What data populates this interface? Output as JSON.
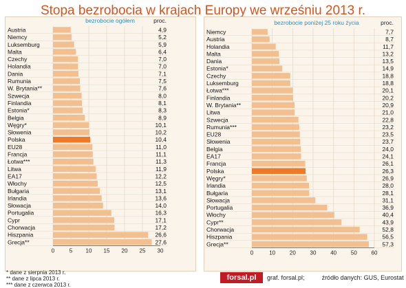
{
  "title": "Stopa bezrobocia w krajach Europy we wrześniu 2013 r.",
  "colors": {
    "bar": "#f2bf91",
    "highlight": "#ec7a2a",
    "panel_bg": "#fbf4ea",
    "title": "#d6541c",
    "logo_bg": "#c11b24"
  },
  "chart_data": [
    {
      "type": "bar",
      "orientation": "horizontal",
      "subtitle": "bezrobocie ogółem",
      "value_header": "proc.",
      "xlim": [
        0,
        30
      ],
      "xticks": [
        "0",
        "5",
        "10",
        "15",
        "20",
        "25",
        "30"
      ],
      "highlight": "Polska",
      "categories": [
        "Austria",
        "Niemcy",
        "Luksemburg",
        "Malta",
        "Czechy",
        "Holandia",
        "Dania",
        "Rumunia",
        "W. Brytania**",
        "Szwecja",
        "Finlandia",
        "Estonia*",
        "Belgia",
        "Węgry*",
        "Słowenia",
        "Polska",
        "EU28",
        "Francja",
        "Łotwa***",
        "Litwa",
        "EA17",
        "Włochy",
        "Bułgaria",
        "Irlandia",
        "Słowacja",
        "Portugalia",
        "Cypr",
        "Chorwacja",
        "Hiszpania",
        "Grecja**"
      ],
      "values": [
        4.9,
        5.2,
        5.9,
        6.4,
        7.0,
        7.0,
        7.1,
        7.5,
        7.6,
        8.0,
        8.1,
        8.3,
        8.9,
        10.1,
        10.2,
        10.4,
        11.0,
        11.1,
        11.3,
        11.9,
        12.2,
        12.5,
        13.1,
        13.6,
        14.0,
        16.3,
        17.1,
        17.2,
        26.6,
        27.6
      ],
      "labels": [
        "4,9",
        "5,2",
        "5,9",
        "6,4",
        "7,0",
        "7,0",
        "7,1",
        "7,5",
        "7,6",
        "8,0",
        "8,1",
        "8,3",
        "8,9",
        "10,1",
        "10,2",
        "10,4",
        "11,0",
        "11,1",
        "11,3",
        "11,9",
        "12,2",
        "12,5",
        "13,1",
        "13,6",
        "14,0",
        "16,3",
        "17,1",
        "17,2",
        "26,6",
        "27,6"
      ]
    },
    {
      "type": "bar",
      "orientation": "horizontal",
      "subtitle": "bezrobocie poniżej 25 roku życia",
      "value_header": "proc.",
      "xlim": [
        0,
        60
      ],
      "xticks": [
        "0",
        "10",
        "20",
        "30",
        "40",
        "50",
        "60"
      ],
      "highlight": "Polska",
      "categories": [
        "Niemcy",
        "Austria",
        "Holandia",
        "Malta",
        "Dania",
        "Estonia*",
        "Czechy",
        "Luksemburg",
        "Łotwa***",
        "Finlandia",
        "W. Brytania**",
        "Litwa",
        "Szwecja",
        "Rumunia***",
        "EU28",
        "Słowenia",
        "Belgia",
        "EA17",
        "Francja",
        "Polska",
        "Węgry*",
        "Irlandia",
        "Bułgaria",
        "Słowacja",
        "Portugalia",
        "Włochy",
        "Cypr**",
        "Chorwacja",
        "Hiszpania",
        "Grecja**"
      ],
      "values": [
        7.7,
        8.7,
        11.7,
        13.2,
        13.5,
        14.9,
        18.8,
        18.8,
        20.1,
        20.2,
        20.9,
        21.0,
        22.8,
        23.2,
        23.5,
        23.7,
        24.0,
        24.1,
        26.1,
        26.3,
        26.9,
        28.0,
        28.1,
        31.1,
        36.9,
        40.4,
        43.9,
        52.8,
        56.5,
        57.3
      ],
      "labels": [
        "7,7",
        "8,7",
        "11,7",
        "13,2",
        "13,5",
        "14,9",
        "18,8",
        "18,8",
        "20,1",
        "20,2",
        "20,9",
        "21,0",
        "22,8",
        "23,2",
        "23,5",
        "23,7",
        "24,0",
        "24,1",
        "26,1",
        "26,3",
        "26,9",
        "28,0",
        "28,1",
        "31,1",
        "36,9",
        "40,4",
        "43,9",
        "52,8",
        "56,5",
        "57,3"
      ]
    }
  ],
  "footnotes": [
    "* dane z sierpnia 2013 r.",
    "** dane z lipca 2013 r.",
    "*** dane z czerwca 2013 r."
  ],
  "logo": "forsal.pl",
  "credit": {
    "graf": "graf. forsal.pl;",
    "source": "źródło danych: GUS, Eurostat"
  }
}
